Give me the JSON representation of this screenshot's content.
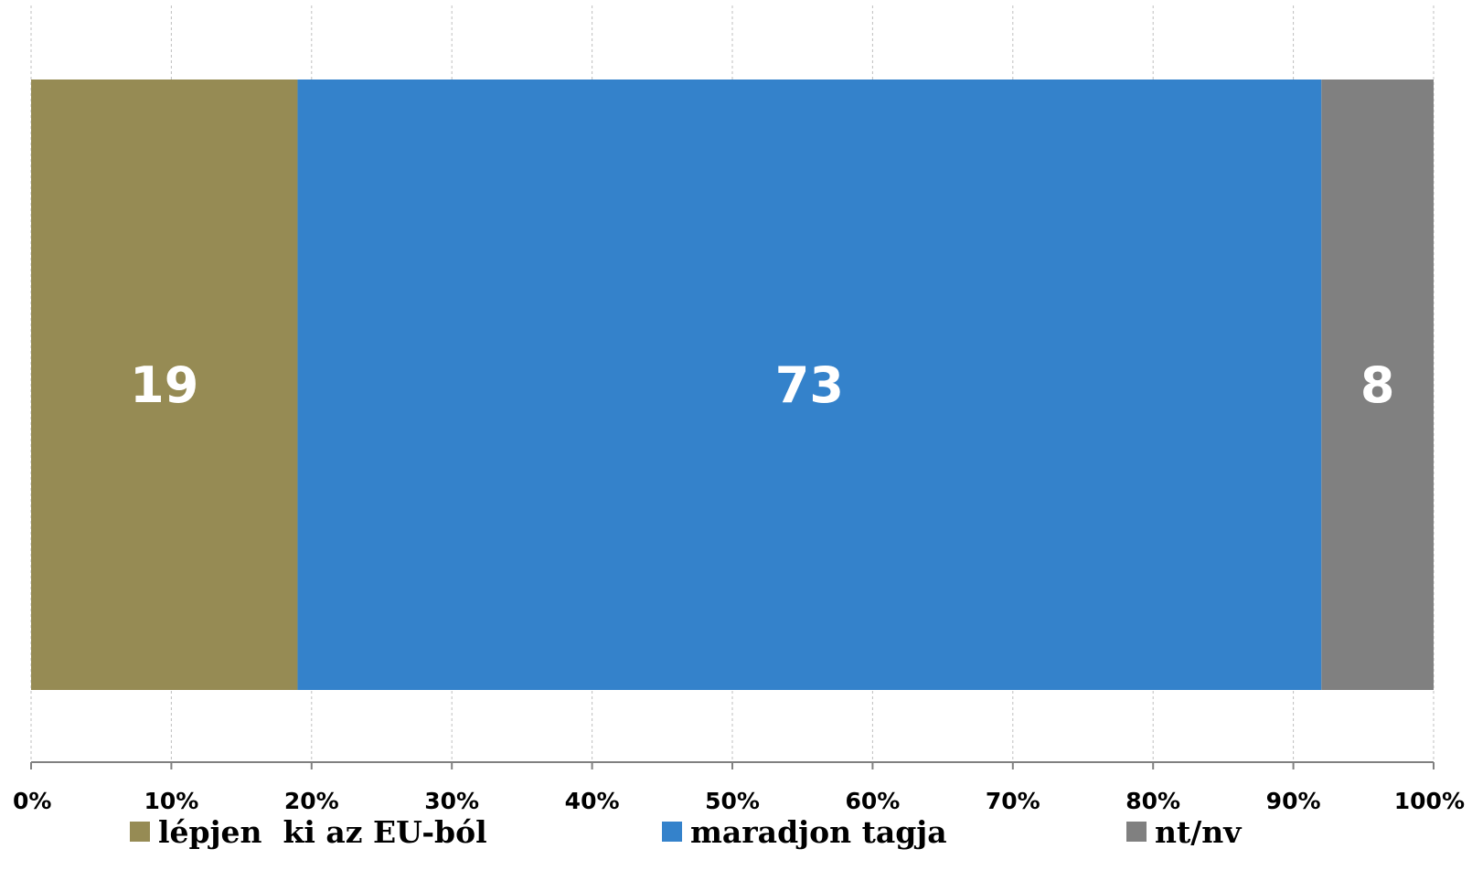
{
  "chart_data": {
    "type": "bar",
    "orientation": "horizontal",
    "stacked": true,
    "categories": [
      ""
    ],
    "series": [
      {
        "name": "lépjen  ki az EU-ból",
        "values": [
          19
        ],
        "color": "#968B54"
      },
      {
        "name": "maradjon tagja",
        "values": [
          73
        ],
        "color": "#3482CB"
      },
      {
        "name": "nt/nv",
        "values": [
          8
        ],
        "color": "#808080"
      }
    ],
    "xlim": [
      0,
      100
    ],
    "x_ticks": [
      "0%",
      "10%",
      "20%",
      "30%",
      "40%",
      "50%",
      "60%",
      "70%",
      "80%",
      "90%",
      "100%"
    ],
    "data_labels": [
      "19",
      "73",
      "8"
    ],
    "grid": "vertical dashed",
    "legend_position": "bottom"
  }
}
